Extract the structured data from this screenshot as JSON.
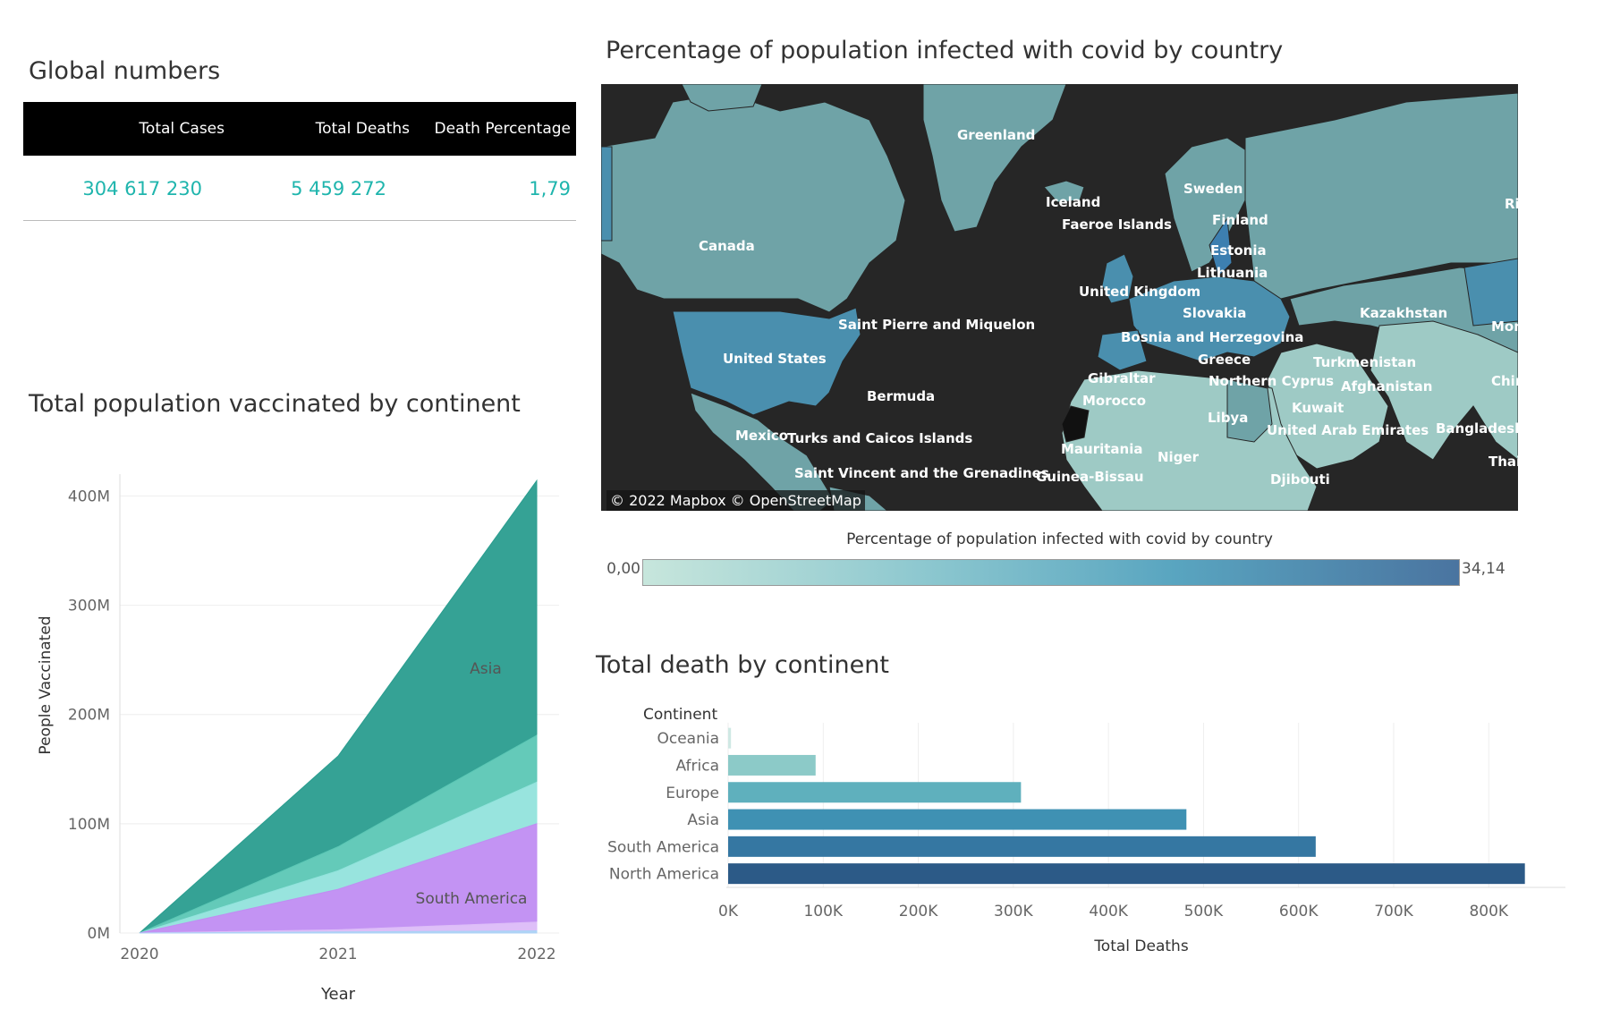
{
  "global_numbers": {
    "title": "Global numbers",
    "headers": [
      "Total Cases",
      "Total Deaths",
      "Death Percentage"
    ],
    "values": [
      "304 617 230",
      "5 459 272",
      "1,79"
    ]
  },
  "map": {
    "title": "Percentage of population infected with covid by country",
    "labels": [
      "Greenland",
      "Canada",
      "Iceland",
      "Faeroe Islands",
      "Sweden",
      "Finland",
      "Estonia",
      "Lithuania",
      "United Kingdom",
      "Slovakia",
      "Kazakhstan",
      "Bosnia and Herzegovina",
      "Saint Pierre and Miquelon",
      "United States",
      "Greece",
      "Turkmenistan",
      "Gibraltar",
      "Northern Cyprus",
      "Afghanistan",
      "Bermuda",
      "Morocco",
      "Kuwait",
      "Libya",
      "United Arab Emirates",
      "Bangladesh",
      "Mexico",
      "Turks and Caicos Islands",
      "Mauritania",
      "Niger",
      "Saint Vincent and the Grenadines",
      "Guinea-Bissau",
      "Djibouti",
      "Ri",
      "Mon",
      "Chir",
      "Thai"
    ],
    "attribution": "© 2022 Mapbox  © OpenStreetMap",
    "legend": {
      "title": "Percentage of population infected with covid by country",
      "min": "0,00",
      "max": "34,14",
      "colors": [
        "#c7e6dc",
        "#8cc7cf",
        "#59a5c0",
        "#4a74a0"
      ]
    },
    "colors": {
      "ocean": "#262626",
      "land_low": "#9ecac5",
      "land_mid": "#6fa3a7",
      "land_high": "#4a8fae",
      "land_top": "#3d7fb0"
    }
  },
  "vaccinated_chart_title": "Total population vaccinated by continent",
  "deaths_chart_title": "Total death by continent",
  "chart_data": [
    {
      "type": "area",
      "title": "Total population vaccinated by continent",
      "xlabel": "Year",
      "ylabel": "People Vaccinated",
      "x": [
        "2020",
        "2021",
        "2022"
      ],
      "ylim": [
        0,
        400000000
      ],
      "y_ticks": [
        "0M",
        "100M",
        "200M",
        "300M",
        "400M"
      ],
      "stacked": true,
      "series": [
        {
          "name": "",
          "values": [
            0,
            1000000,
            2000000
          ],
          "color": "#2a9d8f"
        },
        {
          "name": "",
          "values": [
            0,
            2000000,
            8000000
          ],
          "color": "#5cc7b5"
        },
        {
          "name": "South America",
          "values": [
            0,
            37000000,
            90000000
          ],
          "color": "#92e3dc"
        },
        {
          "name": "",
          "values": [
            0,
            17000000,
            38000000
          ],
          "color": "#c08df2"
        },
        {
          "name": "",
          "values": [
            0,
            22000000,
            43000000
          ],
          "color": "#dcbcf8"
        },
        {
          "name": "Asia",
          "values": [
            0,
            83000000,
            233000000
          ],
          "color": "#acd2f6"
        }
      ]
    },
    {
      "type": "bar",
      "title": "Total death by continent",
      "xlabel": "Total Deaths",
      "ylabel": "Continent",
      "orientation": "horizontal",
      "categories": [
        "Oceania",
        "Africa",
        "Europe",
        "Asia",
        "South America",
        "North America"
      ],
      "values": [
        3000,
        92000,
        308000,
        482000,
        618000,
        838000
      ],
      "xlim": [
        0,
        850000
      ],
      "x_ticks": [
        "0K",
        "100K",
        "200K",
        "300K",
        "400K",
        "500K",
        "600K",
        "700K",
        "800K"
      ],
      "colors": [
        "#cfe9e4",
        "#8ccac8",
        "#5fb0bd",
        "#3f91b3",
        "#3577a2",
        "#2c5a87"
      ]
    }
  ]
}
